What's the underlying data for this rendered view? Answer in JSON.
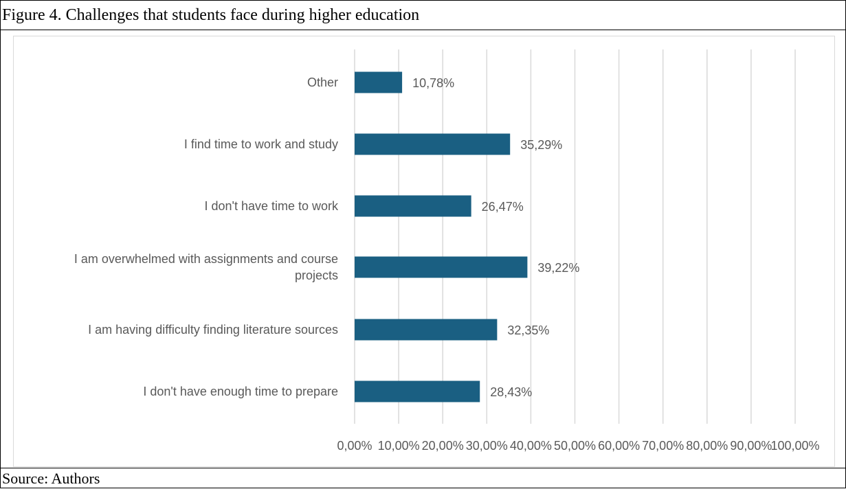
{
  "figure": {
    "caption": "Figure 4. Challenges that students face during higher education",
    "source": "Source: Authors"
  },
  "chart_data": {
    "type": "bar",
    "orientation": "horizontal",
    "bar_color": "#1a5f82",
    "grid_color": "#d9d9d9",
    "xlim": [
      0,
      100
    ],
    "x_ticks": [
      0,
      10,
      20,
      30,
      40,
      50,
      60,
      70,
      80,
      90,
      100
    ],
    "x_tick_labels": [
      "0,00%",
      "10,00%",
      "20,00%",
      "30,00%",
      "40,00%",
      "50,00%",
      "60,00%",
      "70,00%",
      "80,00%",
      "90,00%",
      "100,00%"
    ],
    "grid": true,
    "categories": [
      [
        "Other"
      ],
      [
        "I find time to work and study"
      ],
      [
        "I don't have time to work"
      ],
      [
        "I am overwhelmed with assignments and course",
        "projects"
      ],
      [
        "I am having difficulty finding literature sources"
      ],
      [
        "I don't have enough time to prepare"
      ]
    ],
    "values": [
      10.78,
      35.29,
      26.47,
      39.22,
      32.35,
      28.43
    ],
    "value_labels": [
      "10,78%",
      "35,29%",
      "26,47%",
      "39,22%",
      "32,35%",
      "28,43%"
    ]
  }
}
